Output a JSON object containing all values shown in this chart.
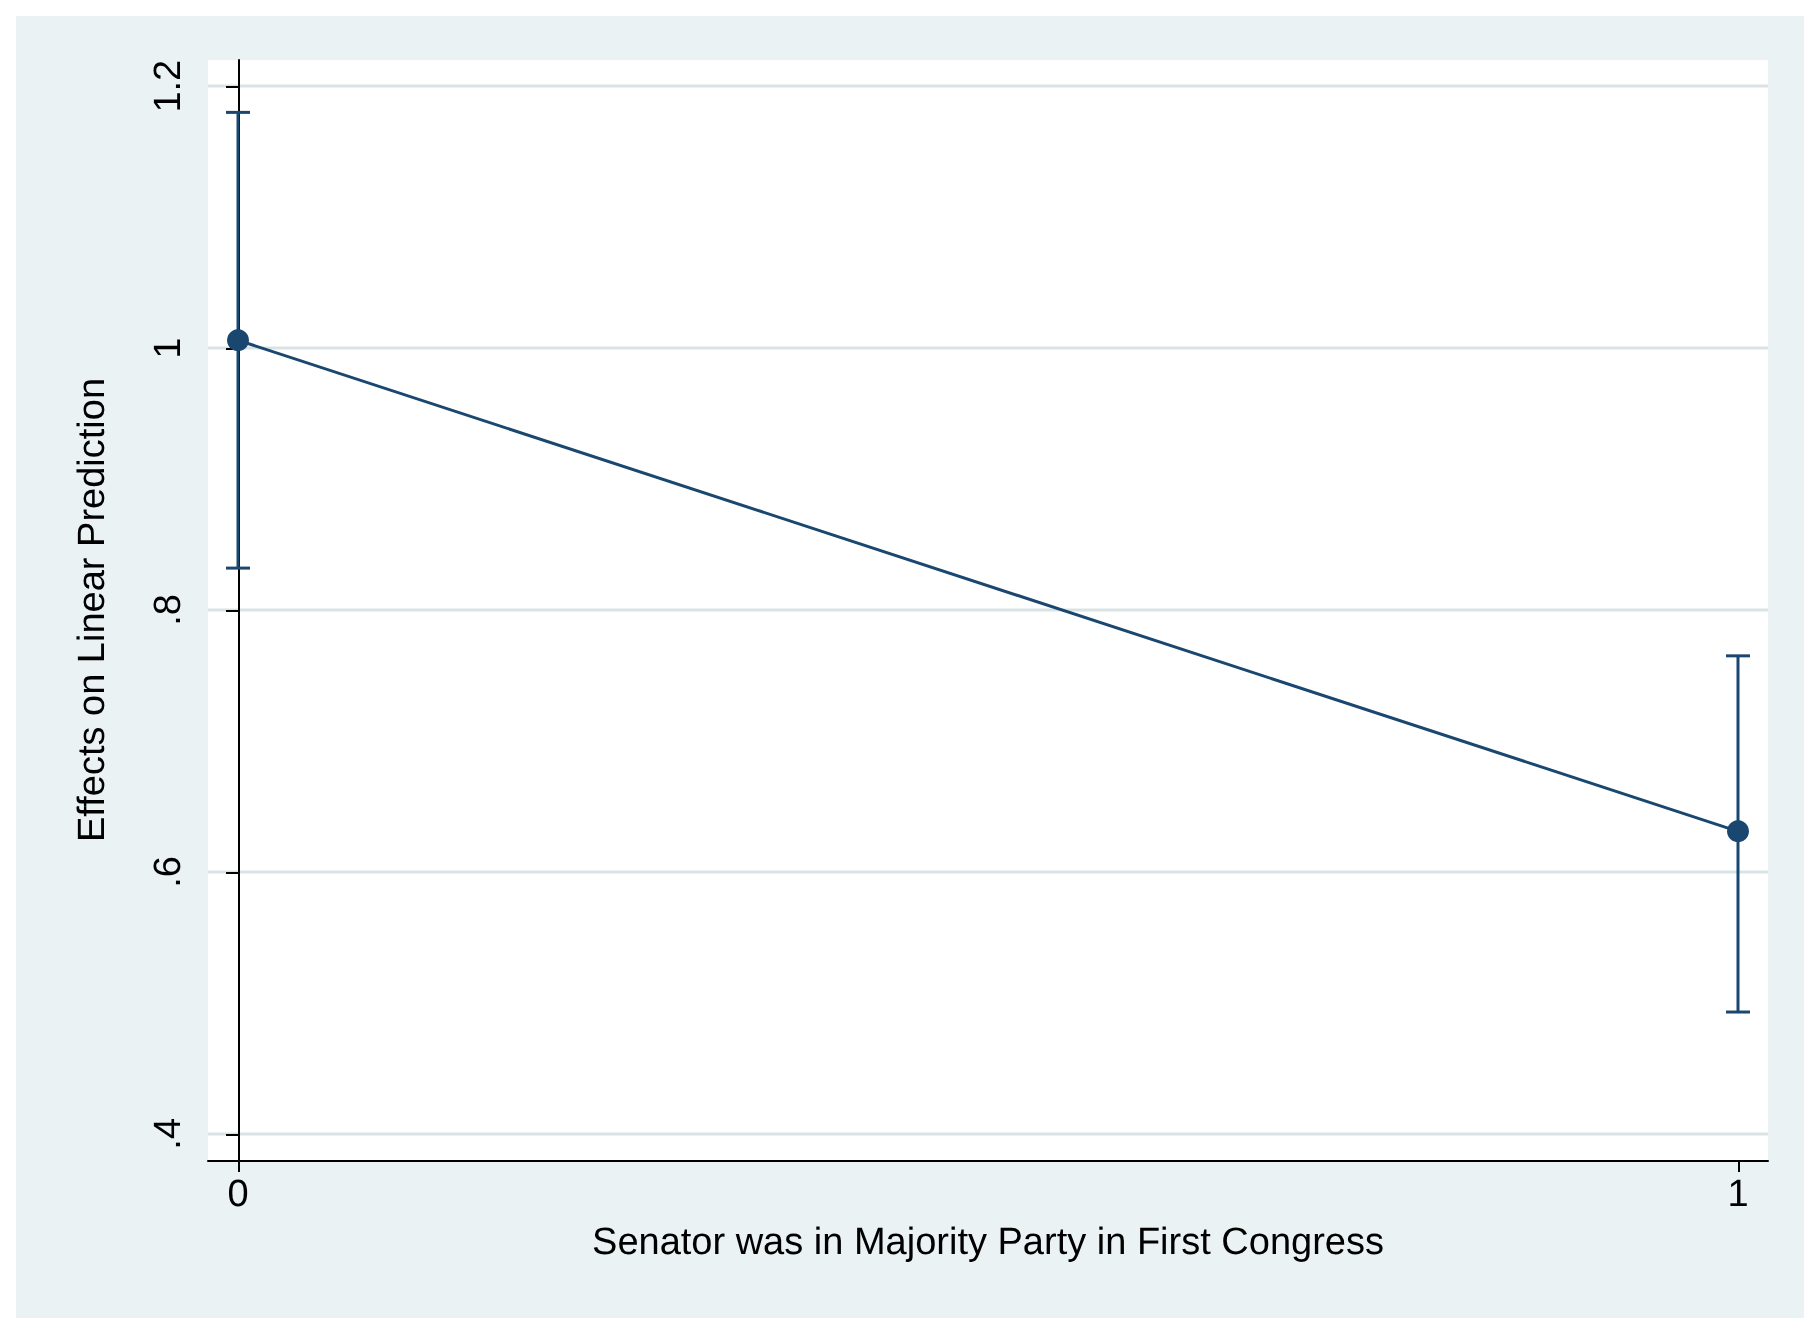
{
  "chart_data": {
    "type": "line",
    "xlabel": "Senator was in Majority Party in First Congress",
    "ylabel": "Effects on Linear Prediction",
    "x": [
      0,
      1
    ],
    "series": [
      {
        "color": "#1a476f",
        "values": [
          1.006,
          0.631
        ],
        "errors": [
          [
            0.832,
            1.18
          ],
          [
            0.493,
            0.765
          ]
        ]
      }
    ],
    "xlim": [
      -0.02,
      1.02
    ],
    "xticks": [
      0,
      1
    ],
    "ylim": [
      0.38,
      1.22
    ],
    "yticks": [
      {
        "value": 0.4,
        "label": ".4"
      },
      {
        "value": 0.6,
        "label": ".6"
      },
      {
        "value": 0.8,
        "label": ".8"
      },
      {
        "value": 1,
        "label": "1"
      },
      {
        "value": 1.2,
        "label": "1.2"
      }
    ],
    "grid": "y",
    "marker": "circle",
    "line_style": "solid"
  }
}
